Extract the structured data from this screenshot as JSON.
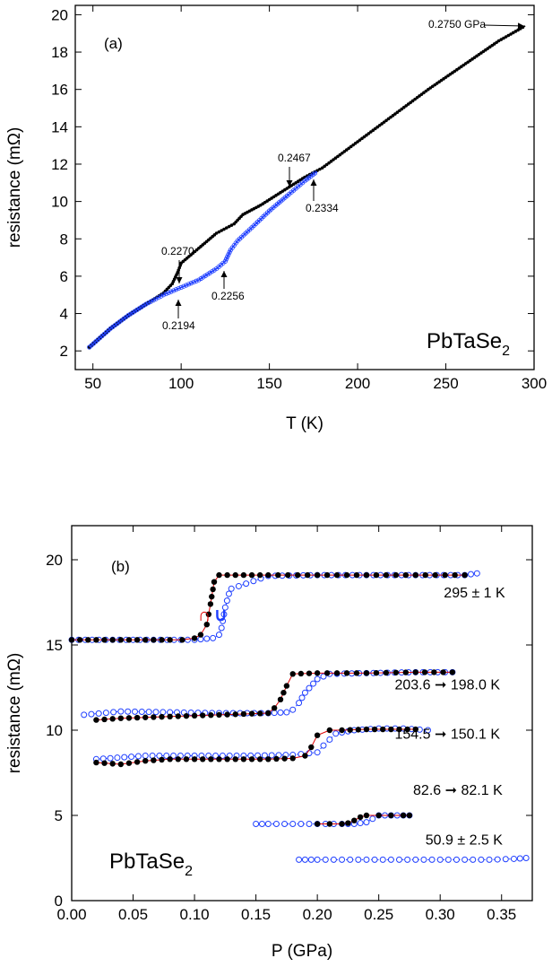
{
  "chart_data": [
    {
      "type": "line",
      "panel_label": "(a)",
      "material": "PbTaSe",
      "material_sub": "2",
      "xlabel": "T (K)",
      "ylabel": "resistance (mΩ)",
      "xlim": [
        40,
        300
      ],
      "ylim": [
        1,
        20.5
      ],
      "xticks": [
        50,
        100,
        150,
        200,
        250,
        300
      ],
      "yticks": [
        2,
        4,
        6,
        8,
        10,
        12,
        14,
        16,
        18,
        20
      ],
      "series": [
        {
          "color": "#000000",
          "marker": "filled-dot",
          "x": [
            48,
            60,
            70,
            80,
            90,
            95,
            98,
            100,
            110,
            120,
            130,
            135,
            140,
            145,
            150,
            160,
            165,
            170,
            180,
            200,
            220,
            240,
            260,
            280,
            295
          ],
          "y": [
            2.2,
            3.2,
            3.9,
            4.5,
            5.1,
            5.6,
            6.2,
            6.7,
            7.5,
            8.3,
            8.8,
            9.3,
            9.55,
            9.8,
            10.1,
            10.7,
            11.0,
            11.3,
            11.8,
            13.2,
            14.6,
            16.0,
            17.3,
            18.6,
            19.4
          ]
        },
        {
          "color": "#1f3fff",
          "marker": "open-circle",
          "x": [
            48,
            60,
            70,
            80,
            90,
            100,
            110,
            115,
            120,
            125,
            128,
            132,
            140,
            150,
            160,
            165,
            170,
            177
          ],
          "y": [
            2.2,
            3.2,
            3.9,
            4.5,
            5.0,
            5.4,
            5.8,
            6.1,
            6.4,
            6.8,
            7.4,
            7.9,
            8.6,
            9.5,
            10.3,
            10.7,
            11.1,
            11.6
          ]
        }
      ],
      "annotations": [
        {
          "text": "0.2750 GPa",
          "x": 291,
          "y": 19.3
        },
        {
          "text": "0.2270",
          "x": 98,
          "y": 6.2
        },
        {
          "text": "0.2194",
          "x": 97,
          "y": 5.3
        },
        {
          "text": "0.2256",
          "x": 126,
          "y": 6.8
        },
        {
          "text": "0.2467",
          "x": 164,
          "y": 10.7
        },
        {
          "text": "0.2334",
          "x": 177,
          "y": 11.6
        }
      ]
    },
    {
      "type": "line",
      "panel_label": "(b)",
      "material": "PbTaSe",
      "material_sub": "2",
      "xlabel": "P (GPa)",
      "ylabel": "resistance (mΩ)",
      "xlim": [
        0.0,
        0.375
      ],
      "ylim": [
        0,
        22
      ],
      "xticks": [
        "0.00",
        "0.05",
        "0.10",
        "0.15",
        "0.20",
        "0.25",
        "0.30",
        "0.35"
      ],
      "yticks": [
        0,
        5,
        10,
        15,
        20
      ],
      "series": [
        {
          "name": "295 ± 1 K",
          "label_parts": [
            "295",
            "±",
            "1 K"
          ],
          "label_x": 0.303,
          "label_y": 17.8,
          "filled": {
            "x": [
              0.0,
              0.02,
              0.04,
              0.06,
              0.08,
              0.09,
              0.1,
              0.105,
              0.11,
              0.113,
              0.116,
              0.12,
              0.14,
              0.16,
              0.2,
              0.24,
              0.28,
              0.32
            ],
            "y": [
              15.3,
              15.3,
              15.3,
              15.3,
              15.3,
              15.3,
              15.4,
              15.6,
              16.2,
              17.4,
              18.7,
              19.1,
              19.1,
              19.1,
              19.1,
              19.1,
              19.1,
              19.1
            ]
          },
          "open": {
            "x": [
              0.33,
              0.32,
              0.28,
              0.24,
              0.2,
              0.16,
              0.13,
              0.128,
              0.125,
              0.122,
              0.12,
              0.115,
              0.1,
              0.05,
              0.0
            ],
            "y": [
              19.2,
              19.1,
              19.1,
              19.1,
              19.1,
              19.05,
              18.3,
              18.0,
              17.2,
              16.0,
              15.6,
              15.4,
              15.3,
              15.3,
              15.3
            ]
          }
        },
        {
          "name": "203.6 ➞ 198.0 K",
          "label_parts": [
            "203.6",
            "➞",
            "198.0 K"
          ],
          "label_x": 0.263,
          "label_y": 12.4,
          "filled": {
            "x": [
              0.02,
              0.04,
              0.06,
              0.08,
              0.1,
              0.12,
              0.14,
              0.16,
              0.165,
              0.17,
              0.175,
              0.18,
              0.2,
              0.24,
              0.28,
              0.31
            ],
            "y": [
              10.6,
              10.7,
              10.75,
              10.8,
              10.85,
              10.9,
              10.95,
              11.0,
              11.3,
              11.8,
              12.6,
              13.3,
              13.35,
              13.35,
              13.4,
              13.4
            ]
          },
          "open": {
            "x": [
              0.31,
              0.28,
              0.24,
              0.21,
              0.2,
              0.19,
              0.185,
              0.18,
              0.175,
              0.16,
              0.12,
              0.08,
              0.04,
              0.01
            ],
            "y": [
              13.4,
              13.4,
              13.35,
              13.3,
              13.0,
              12.2,
              11.6,
              11.2,
              11.05,
              11.0,
              11.0,
              11.05,
              11.1,
              10.9
            ]
          }
        },
        {
          "name": "154.5 ➞ 150.1 K",
          "label_parts": [
            "154.5",
            "➞",
            "150.1 K"
          ],
          "label_x": 0.263,
          "label_y": 9.5,
          "filled": {
            "x": [
              0.02,
              0.04,
              0.06,
              0.08,
              0.1,
              0.12,
              0.14,
              0.16,
              0.18,
              0.19,
              0.195,
              0.2,
              0.21,
              0.22,
              0.24,
              0.26,
              0.28
            ],
            "y": [
              8.1,
              8.0,
              8.2,
              8.3,
              8.3,
              8.3,
              8.3,
              8.3,
              8.35,
              8.5,
              9.0,
              9.7,
              10.0,
              10.0,
              10.05,
              10.05,
              10.05
            ]
          },
          "open": {
            "x": [
              0.29,
              0.27,
              0.25,
              0.23,
              0.215,
              0.205,
              0.2,
              0.18,
              0.14,
              0.1,
              0.06,
              0.02
            ],
            "y": [
              10.0,
              10.1,
              10.1,
              10.0,
              9.8,
              9.1,
              8.7,
              8.55,
              8.5,
              8.5,
              8.5,
              8.3
            ]
          }
        },
        {
          "name": "82.6 ➞ 82.1 K",
          "label_parts": [
            "82.6",
            "➞",
            "82.1 K"
          ],
          "label_x": 0.278,
          "label_y": 6.2,
          "filled": {
            "x": [
              0.2,
              0.21,
              0.22,
              0.225,
              0.23,
              0.235,
              0.24,
              0.25,
              0.26,
              0.27,
              0.275
            ],
            "y": [
              4.5,
              4.5,
              4.5,
              4.55,
              4.7,
              4.9,
              5.0,
              5.0,
              5.0,
              5.0,
              5.0
            ]
          },
          "open": {
            "x": [
              0.275,
              0.26,
              0.25,
              0.245,
              0.24,
              0.23,
              0.22,
              0.2,
              0.18,
              0.16,
              0.15
            ],
            "y": [
              5.0,
              5.0,
              5.0,
              4.8,
              4.6,
              4.5,
              4.5,
              4.5,
              4.5,
              4.5,
              4.5
            ]
          }
        },
        {
          "name": "50.9 ± 2.5 K",
          "label_parts": [
            "50.9",
            "±",
            "2.5 K"
          ],
          "label_x": 0.288,
          "label_y": 3.3,
          "filled": {
            "x": [],
            "y": []
          },
          "open": {
            "x": [
              0.185,
              0.2,
              0.22,
              0.24,
              0.26,
              0.28,
              0.3,
              0.32,
              0.34,
              0.36,
              0.37
            ],
            "y": [
              2.4,
              2.4,
              2.4,
              2.4,
              2.4,
              2.4,
              2.4,
              2.4,
              2.4,
              2.45,
              2.5
            ]
          }
        }
      ]
    }
  ]
}
